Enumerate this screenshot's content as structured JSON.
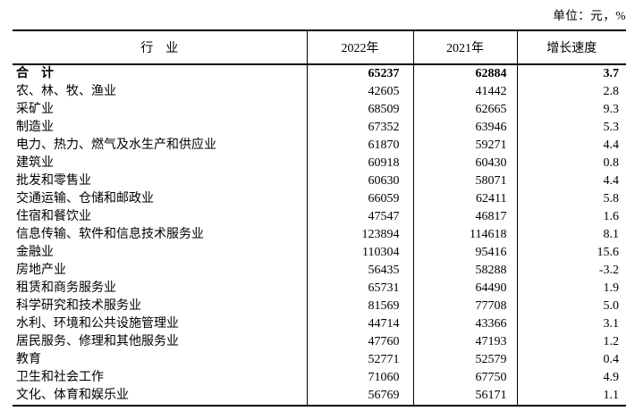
{
  "unit_note": "单位：元，%",
  "chart_data": {
    "type": "table",
    "title": "",
    "columns": [
      "行　业",
      "2022年",
      "2021年",
      "增长速度"
    ],
    "column_units": {
      "2022年": "元",
      "2021年": "元",
      "增长速度": "%"
    },
    "rows": [
      {
        "industry": "合　计",
        "y2022": "65237",
        "y2021": "62884",
        "growth": "3.7",
        "bold": true
      },
      {
        "industry": "农、林、牧、渔业",
        "y2022": "42605",
        "y2021": "41442",
        "growth": "2.8",
        "bold": false
      },
      {
        "industry": "采矿业",
        "y2022": "68509",
        "y2021": "62665",
        "growth": "9.3",
        "bold": false
      },
      {
        "industry": "制造业",
        "y2022": "67352",
        "y2021": "63946",
        "growth": "5.3",
        "bold": false
      },
      {
        "industry": "电力、热力、燃气及水生产和供应业",
        "y2022": "61870",
        "y2021": "59271",
        "growth": "4.4",
        "bold": false
      },
      {
        "industry": "建筑业",
        "y2022": "60918",
        "y2021": "60430",
        "growth": "0.8",
        "bold": false
      },
      {
        "industry": "批发和零售业",
        "y2022": "60630",
        "y2021": "58071",
        "growth": "4.4",
        "bold": false
      },
      {
        "industry": "交通运输、仓储和邮政业",
        "y2022": "66059",
        "y2021": "62411",
        "growth": "5.8",
        "bold": false
      },
      {
        "industry": "住宿和餐饮业",
        "y2022": "47547",
        "y2021": "46817",
        "growth": "1.6",
        "bold": false
      },
      {
        "industry": "信息传输、软件和信息技术服务业",
        "y2022": "123894",
        "y2021": "114618",
        "growth": "8.1",
        "bold": false
      },
      {
        "industry": "金融业",
        "y2022": "110304",
        "y2021": "95416",
        "growth": "15.6",
        "bold": false
      },
      {
        "industry": "房地产业",
        "y2022": "56435",
        "y2021": "58288",
        "growth": "-3.2",
        "bold": false
      },
      {
        "industry": "租赁和商务服务业",
        "y2022": "65731",
        "y2021": "64490",
        "growth": "1.9",
        "bold": false
      },
      {
        "industry": "科学研究和技术服务业",
        "y2022": "81569",
        "y2021": "77708",
        "growth": "5.0",
        "bold": false
      },
      {
        "industry": "水利、环境和公共设施管理业",
        "y2022": "44714",
        "y2021": "43366",
        "growth": "3.1",
        "bold": false
      },
      {
        "industry": "居民服务、修理和其他服务业",
        "y2022": "47760",
        "y2021": "47193",
        "growth": "1.2",
        "bold": false
      },
      {
        "industry": "教育",
        "y2022": "52771",
        "y2021": "52579",
        "growth": "0.4",
        "bold": false
      },
      {
        "industry": "卫生和社会工作",
        "y2022": "71060",
        "y2021": "67750",
        "growth": "4.9",
        "bold": false
      },
      {
        "industry": "文化、体育和娱乐业",
        "y2022": "56769",
        "y2021": "56171",
        "growth": "1.1",
        "bold": false
      }
    ]
  }
}
